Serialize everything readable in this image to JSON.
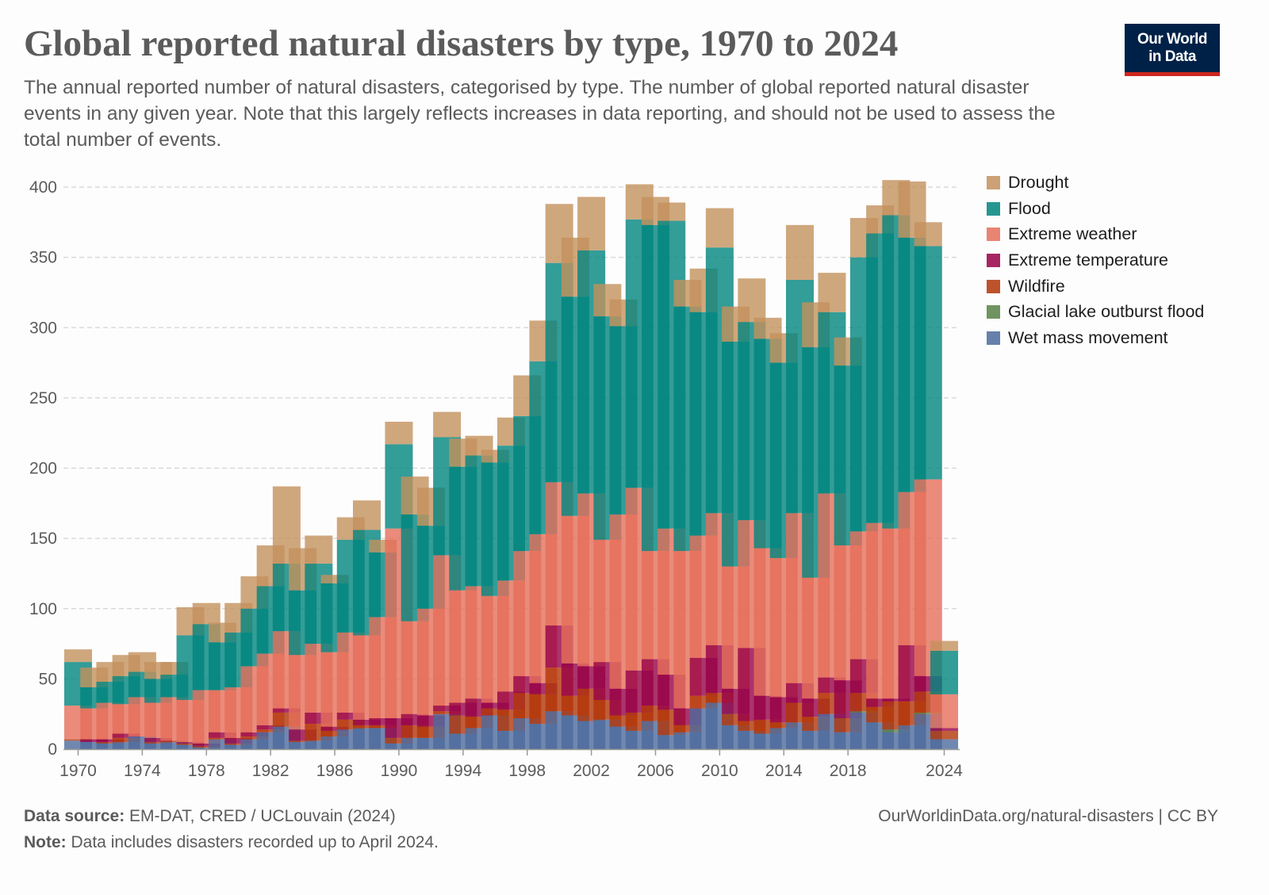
{
  "header": {
    "title": "Global reported natural disasters by type, 1970 to 2024",
    "subtitle": "The annual reported number of natural disasters, categorised by type. The number of global reported natural disaster events in any given year. Note that this largely reflects increases in data reporting, and should not be used to assess the total number of events.",
    "logo_line1": "Our World",
    "logo_line2": "in Data",
    "logo_bg": "#002147",
    "logo_accent": "#ce261e"
  },
  "footer": {
    "source_label": "Data source:",
    "source_text": " EM-DAT, CRED / UCLouvain (2024)",
    "note_label": "Note:",
    "note_text": " Data includes disasters recorded up to April 2024.",
    "url": "OurWorldinData.org/natural-disasters | CC BY"
  },
  "chart_data": {
    "type": "bar",
    "stacked": true,
    "title": "Global reported natural disasters by type, 1970 to 2024",
    "xlabel": "",
    "ylabel": "",
    "ylim": [
      0,
      400
    ],
    "yticks": [
      0,
      50,
      100,
      150,
      200,
      250,
      300,
      350,
      400
    ],
    "xticks": [
      "1970",
      "1974",
      "1978",
      "1982",
      "1986",
      "1990",
      "1994",
      "1998",
      "2002",
      "2006",
      "2010",
      "2014",
      "2018",
      "2024"
    ],
    "grid": "horizontal-dashed",
    "legend_position": "right",
    "categories": [
      "1970",
      "1971",
      "1972",
      "1973",
      "1974",
      "1975",
      "1976",
      "1977",
      "1978",
      "1979",
      "1980",
      "1981",
      "1982",
      "1983",
      "1984",
      "1985",
      "1986",
      "1987",
      "1988",
      "1989",
      "1990",
      "1991",
      "1992",
      "1993",
      "1994",
      "1995",
      "1996",
      "1997",
      "1998",
      "1999",
      "2000",
      "2001",
      "2002",
      "2003",
      "2004",
      "2005",
      "2006",
      "2007",
      "2008",
      "2009",
      "2010",
      "2011",
      "2012",
      "2013",
      "2014",
      "2015",
      "2016",
      "2017",
      "2018",
      "2019",
      "2020",
      "2021",
      "2022",
      "2023",
      "2024"
    ],
    "series": [
      {
        "name": "Wet mass movement",
        "color": "#4c6a9c",
        "values": [
          6,
          5,
          4,
          5,
          9,
          4,
          5,
          3,
          1,
          7,
          3,
          7,
          12,
          16,
          5,
          6,
          9,
          14,
          15,
          15,
          4,
          8,
          8,
          25,
          11,
          15,
          24,
          13,
          22,
          18,
          27,
          24,
          20,
          21,
          16,
          13,
          20,
          10,
          12,
          29,
          33,
          17,
          13,
          11,
          15,
          19,
          13,
          25,
          12,
          26,
          19,
          12,
          17,
          25,
          7
        ]
      },
      {
        "name": "Glacial lake outburst flood",
        "color": "#578145",
        "values": [
          0,
          0,
          0,
          0,
          0,
          0,
          0,
          0,
          0,
          0,
          0,
          0,
          0,
          0,
          0,
          0,
          0,
          0,
          0,
          0,
          0,
          0,
          0,
          0,
          0,
          0,
          0,
          0,
          0,
          0,
          0,
          0,
          0,
          0,
          0,
          0,
          0,
          0,
          0,
          0,
          0,
          0,
          0,
          0,
          0,
          0,
          0,
          0,
          0,
          1,
          0,
          2,
          0,
          1,
          0
        ]
      },
      {
        "name": "Wildfire",
        "color": "#b13507",
        "values": [
          1,
          0,
          1,
          3,
          0,
          1,
          1,
          1,
          1,
          1,
          1,
          2,
          2,
          10,
          1,
          12,
          4,
          7,
          2,
          2,
          4,
          9,
          8,
          2,
          13,
          8,
          5,
          15,
          18,
          21,
          31,
          14,
          23,
          14,
          8,
          13,
          11,
          18,
          5,
          9,
          7,
          8,
          7,
          10,
          4,
          14,
          10,
          15,
          10,
          13,
          11,
          20,
          17,
          15,
          6
        ]
      },
      {
        "name": "Extreme temperature",
        "color": "#970046",
        "values": [
          0,
          2,
          2,
          3,
          0,
          3,
          0,
          1,
          2,
          4,
          4,
          3,
          3,
          3,
          8,
          8,
          3,
          5,
          4,
          5,
          14,
          8,
          8,
          4,
          9,
          13,
          4,
          13,
          12,
          8,
          30,
          23,
          16,
          27,
          19,
          30,
          33,
          25,
          12,
          27,
          34,
          18,
          52,
          17,
          18,
          14,
          13,
          11,
          27,
          24,
          6,
          2,
          40,
          11,
          2
        ]
      },
      {
        "name": "Extreme weather",
        "color": "#e56e5a",
        "values": [
          24,
          22,
          26,
          21,
          28,
          25,
          31,
          30,
          38,
          30,
          36,
          47,
          51,
          55,
          53,
          49,
          53,
          57,
          60,
          72,
          135,
          66,
          76,
          107,
          80,
          80,
          76,
          79,
          89,
          106,
          102,
          105,
          123,
          87,
          124,
          130,
          77,
          104,
          112,
          87,
          94,
          87,
          91,
          105,
          99,
          121,
          86,
          131,
          96,
          91,
          125,
          121,
          109,
          140,
          24
        ]
      },
      {
        "name": "Flood",
        "color": "#00847e",
        "values": [
          31,
          15,
          15,
          20,
          18,
          17,
          16,
          46,
          47,
          34,
          39,
          41,
          48,
          48,
          46,
          57,
          49,
          66,
          75,
          46,
          60,
          76,
          59,
          84,
          88,
          93,
          95,
          96,
          96,
          123,
          156,
          156,
          173,
          159,
          134,
          191,
          232,
          219,
          174,
          159,
          189,
          160,
          141,
          149,
          139,
          166,
          164,
          129,
          128,
          195,
          206,
          223,
          181,
          166,
          31
        ]
      },
      {
        "name": "Drought",
        "color": "#c3915d",
        "values": [
          9,
          14,
          14,
          15,
          14,
          12,
          9,
          20,
          15,
          14,
          21,
          23,
          29,
          55,
          30,
          20,
          6,
          16,
          21,
          9,
          16,
          27,
          27,
          18,
          20,
          14,
          9,
          20,
          29,
          29,
          42,
          42,
          38,
          23,
          19,
          25,
          20,
          13,
          19,
          31,
          28,
          25,
          31,
          15,
          21,
          39,
          32,
          28,
          20,
          28,
          20,
          25,
          40,
          17,
          7
        ]
      }
    ]
  }
}
